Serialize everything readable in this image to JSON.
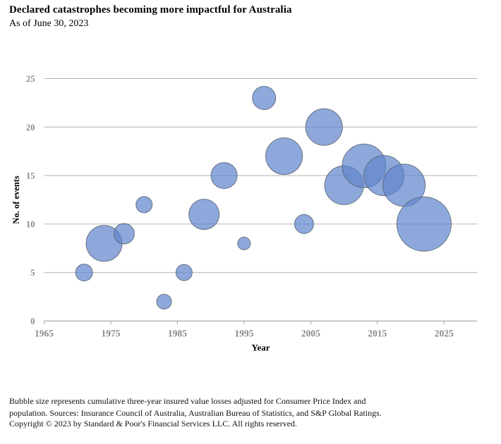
{
  "header": {
    "title": "Declared catastrophes becoming more impactful for Australia",
    "as_of": "As of June 30, 2023"
  },
  "chart_data": {
    "type": "scatter",
    "subtype": "bubble",
    "title": "Declared catastrophes becoming more impactful for Australia",
    "subtitle": "As of June 30, 2023",
    "xlabel": "Year",
    "ylabel": "No. of events",
    "xlim": [
      1965,
      2030
    ],
    "ylim": [
      0,
      25
    ],
    "x_ticks": [
      1965,
      1975,
      1985,
      1995,
      2005,
      2015,
      2025
    ],
    "y_ticks": [
      0,
      5,
      10,
      15,
      20,
      25
    ],
    "grid": "horizontal",
    "legend": "none",
    "size_encoding": "Bubble size represents cumulative three-year insured value losses adjusted for Consumer Price Index and population",
    "points": [
      {
        "year": 1971,
        "events": 5,
        "radius_px": 12
      },
      {
        "year": 1974,
        "events": 8,
        "radius_px": 25.5
      },
      {
        "year": 1977,
        "events": 9,
        "radius_px": 14.5
      },
      {
        "year": 1980,
        "events": 12,
        "radius_px": 11.5
      },
      {
        "year": 1983,
        "events": 2,
        "radius_px": 10.5
      },
      {
        "year": 1986,
        "events": 5,
        "radius_px": 11.5
      },
      {
        "year": 1989,
        "events": 11,
        "radius_px": 21.5
      },
      {
        "year": 1992,
        "events": 15,
        "radius_px": 18.5
      },
      {
        "year": 1995,
        "events": 8,
        "radius_px": 9
      },
      {
        "year": 1998,
        "events": 23,
        "radius_px": 16.5
      },
      {
        "year": 2001,
        "events": 17,
        "radius_px": 26
      },
      {
        "year": 2004,
        "events": 10,
        "radius_px": 13.5
      },
      {
        "year": 2007,
        "events": 20,
        "radius_px": 26
      },
      {
        "year": 2010,
        "events": 14,
        "radius_px": 27.5
      },
      {
        "year": 2013,
        "events": 16,
        "radius_px": 31
      },
      {
        "year": 2016,
        "events": 15,
        "radius_px": 28.5
      },
      {
        "year": 2019,
        "events": 14,
        "radius_px": 30
      },
      {
        "year": 2022,
        "events": 10,
        "radius_px": 38.5
      }
    ]
  },
  "colors": {
    "bubble_fill": "#6386CD",
    "bubble_fill_opacity": 0.72,
    "bubble_stroke": "#5B6675",
    "grid_line": "#B3B3B3",
    "axis_line": "#999999",
    "tick_label": "#8A8A8A",
    "axis_title": "#000000"
  },
  "footnotes": {
    "line1": "Bubble size represents cumulative three-year insured value losses adjusted for Consumer Price Index and",
    "line2": "population. Sources: Insurance Council of Australia, Australian Bureau of Statistics, and S&P Global Ratings.",
    "copyright": "Copyright © 2023 by Standard & Poor's Financial Services LLC. All rights reserved."
  }
}
